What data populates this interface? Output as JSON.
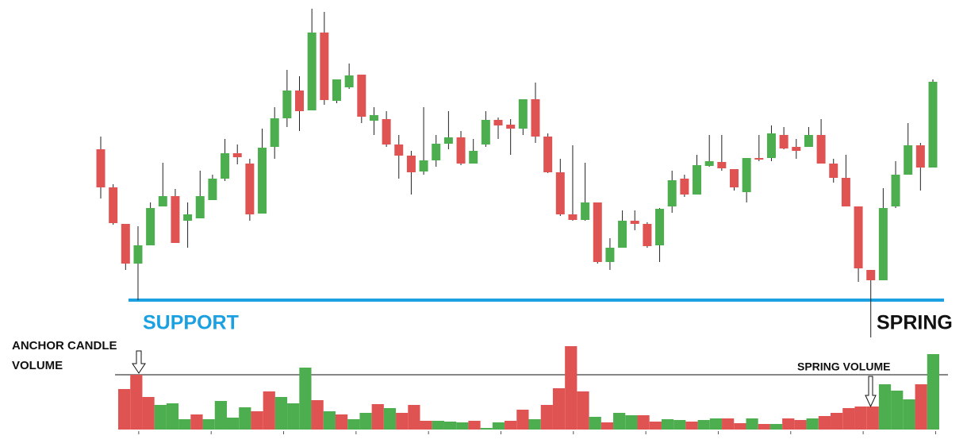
{
  "chart_data": {
    "type": "candlestick",
    "open": [
      212,
      164,
      118,
      68,
      91,
      140,
      153,
      122,
      125,
      148,
      175,
      207,
      194,
      131,
      215,
      251,
      286,
      261,
      359,
      273,
      290,
      306,
      248,
      250,
      218,
      204,
      184,
      198,
      219,
      227,
      194,
      218,
      249,
      243,
      238,
      275,
      228,
      183,
      130,
      123,
      145,
      70,
      88,
      122,
      118,
      91,
      140,
      175,
      155,
      191,
      196,
      187,
      158,
      201,
      201,
      230,
      215,
      215,
      230,
      194,
      176,
      140,
      60,
      47,
      140,
      180,
      217,
      189
    ],
    "high": [
      228,
      168,
      118,
      115,
      145,
      195,
      162,
      145,
      185,
      180,
      225,
      218,
      200,
      238,
      265,
      312,
      304,
      389,
      385,
      300,
      320,
      306,
      265,
      260,
      230,
      210,
      265,
      230,
      260,
      235,
      225,
      260,
      252,
      250,
      275,
      296,
      232,
      200,
      217,
      195,
      145,
      100,
      135,
      135,
      120,
      138,
      185,
      180,
      205,
      230,
      230,
      187,
      201,
      230,
      242,
      240,
      225,
      240,
      250,
      200,
      205,
      140,
      60,
      163,
      197,
      245,
      220,
      300
    ],
    "low": [
      150,
      117,
      60,
      22,
      91,
      140,
      94,
      88,
      125,
      148,
      172,
      193,
      122,
      131,
      200,
      240,
      235,
      261,
      268,
      270,
      288,
      245,
      230,
      215,
      175,
      155,
      180,
      190,
      212,
      192,
      194,
      215,
      225,
      205,
      230,
      220,
      182,
      128,
      122,
      122,
      68,
      60,
      88,
      110,
      88,
      70,
      132,
      152,
      155,
      190,
      185,
      160,
      145,
      197,
      197,
      212,
      200,
      215,
      194,
      170,
      140,
      45,
      -25,
      47,
      138,
      180,
      160,
      189
    ],
    "close": [
      164,
      119,
      68,
      91,
      138,
      153,
      94,
      130,
      153,
      175,
      207,
      202,
      130,
      214,
      251,
      286,
      260,
      359,
      274,
      300,
      305,
      253,
      255,
      218,
      204,
      183,
      198,
      219,
      227,
      194,
      210,
      249,
      242,
      238,
      275,
      228,
      183,
      130,
      123,
      145,
      70,
      88,
      122,
      118,
      90,
      137,
      173,
      155,
      192,
      197,
      188,
      164,
      201,
      199,
      232,
      213,
      210,
      230,
      194,
      176,
      140,
      62,
      47,
      138,
      180,
      217,
      189,
      297
    ],
    "volume": [
      51,
      69,
      41,
      31,
      33,
      13,
      19,
      13,
      36,
      15,
      28,
      23,
      48,
      41,
      33,
      78,
      37,
      23,
      19,
      13,
      21,
      32,
      27,
      21,
      31,
      11,
      11,
      10,
      9,
      11,
      2,
      9,
      11,
      25,
      13,
      31,
      52,
      105,
      48,
      16,
      9,
      21,
      18,
      18,
      10,
      13,
      12,
      10,
      12,
      14,
      14,
      8,
      14,
      7,
      7,
      14,
      12,
      14,
      17,
      21,
      27,
      29,
      29,
      57,
      49,
      38,
      57,
      95
    ],
    "up_color": "#4cae4f",
    "down_color": "#e05353",
    "support_level": 22,
    "support_color": "#1ba1e2",
    "annotations": {
      "support": "SUPPORT",
      "spring": "SPRING",
      "anchor_volume": [
        "ANCHOR CANDLE",
        "VOLUME"
      ],
      "spring_volume": "SPRING VOLUME"
    }
  }
}
